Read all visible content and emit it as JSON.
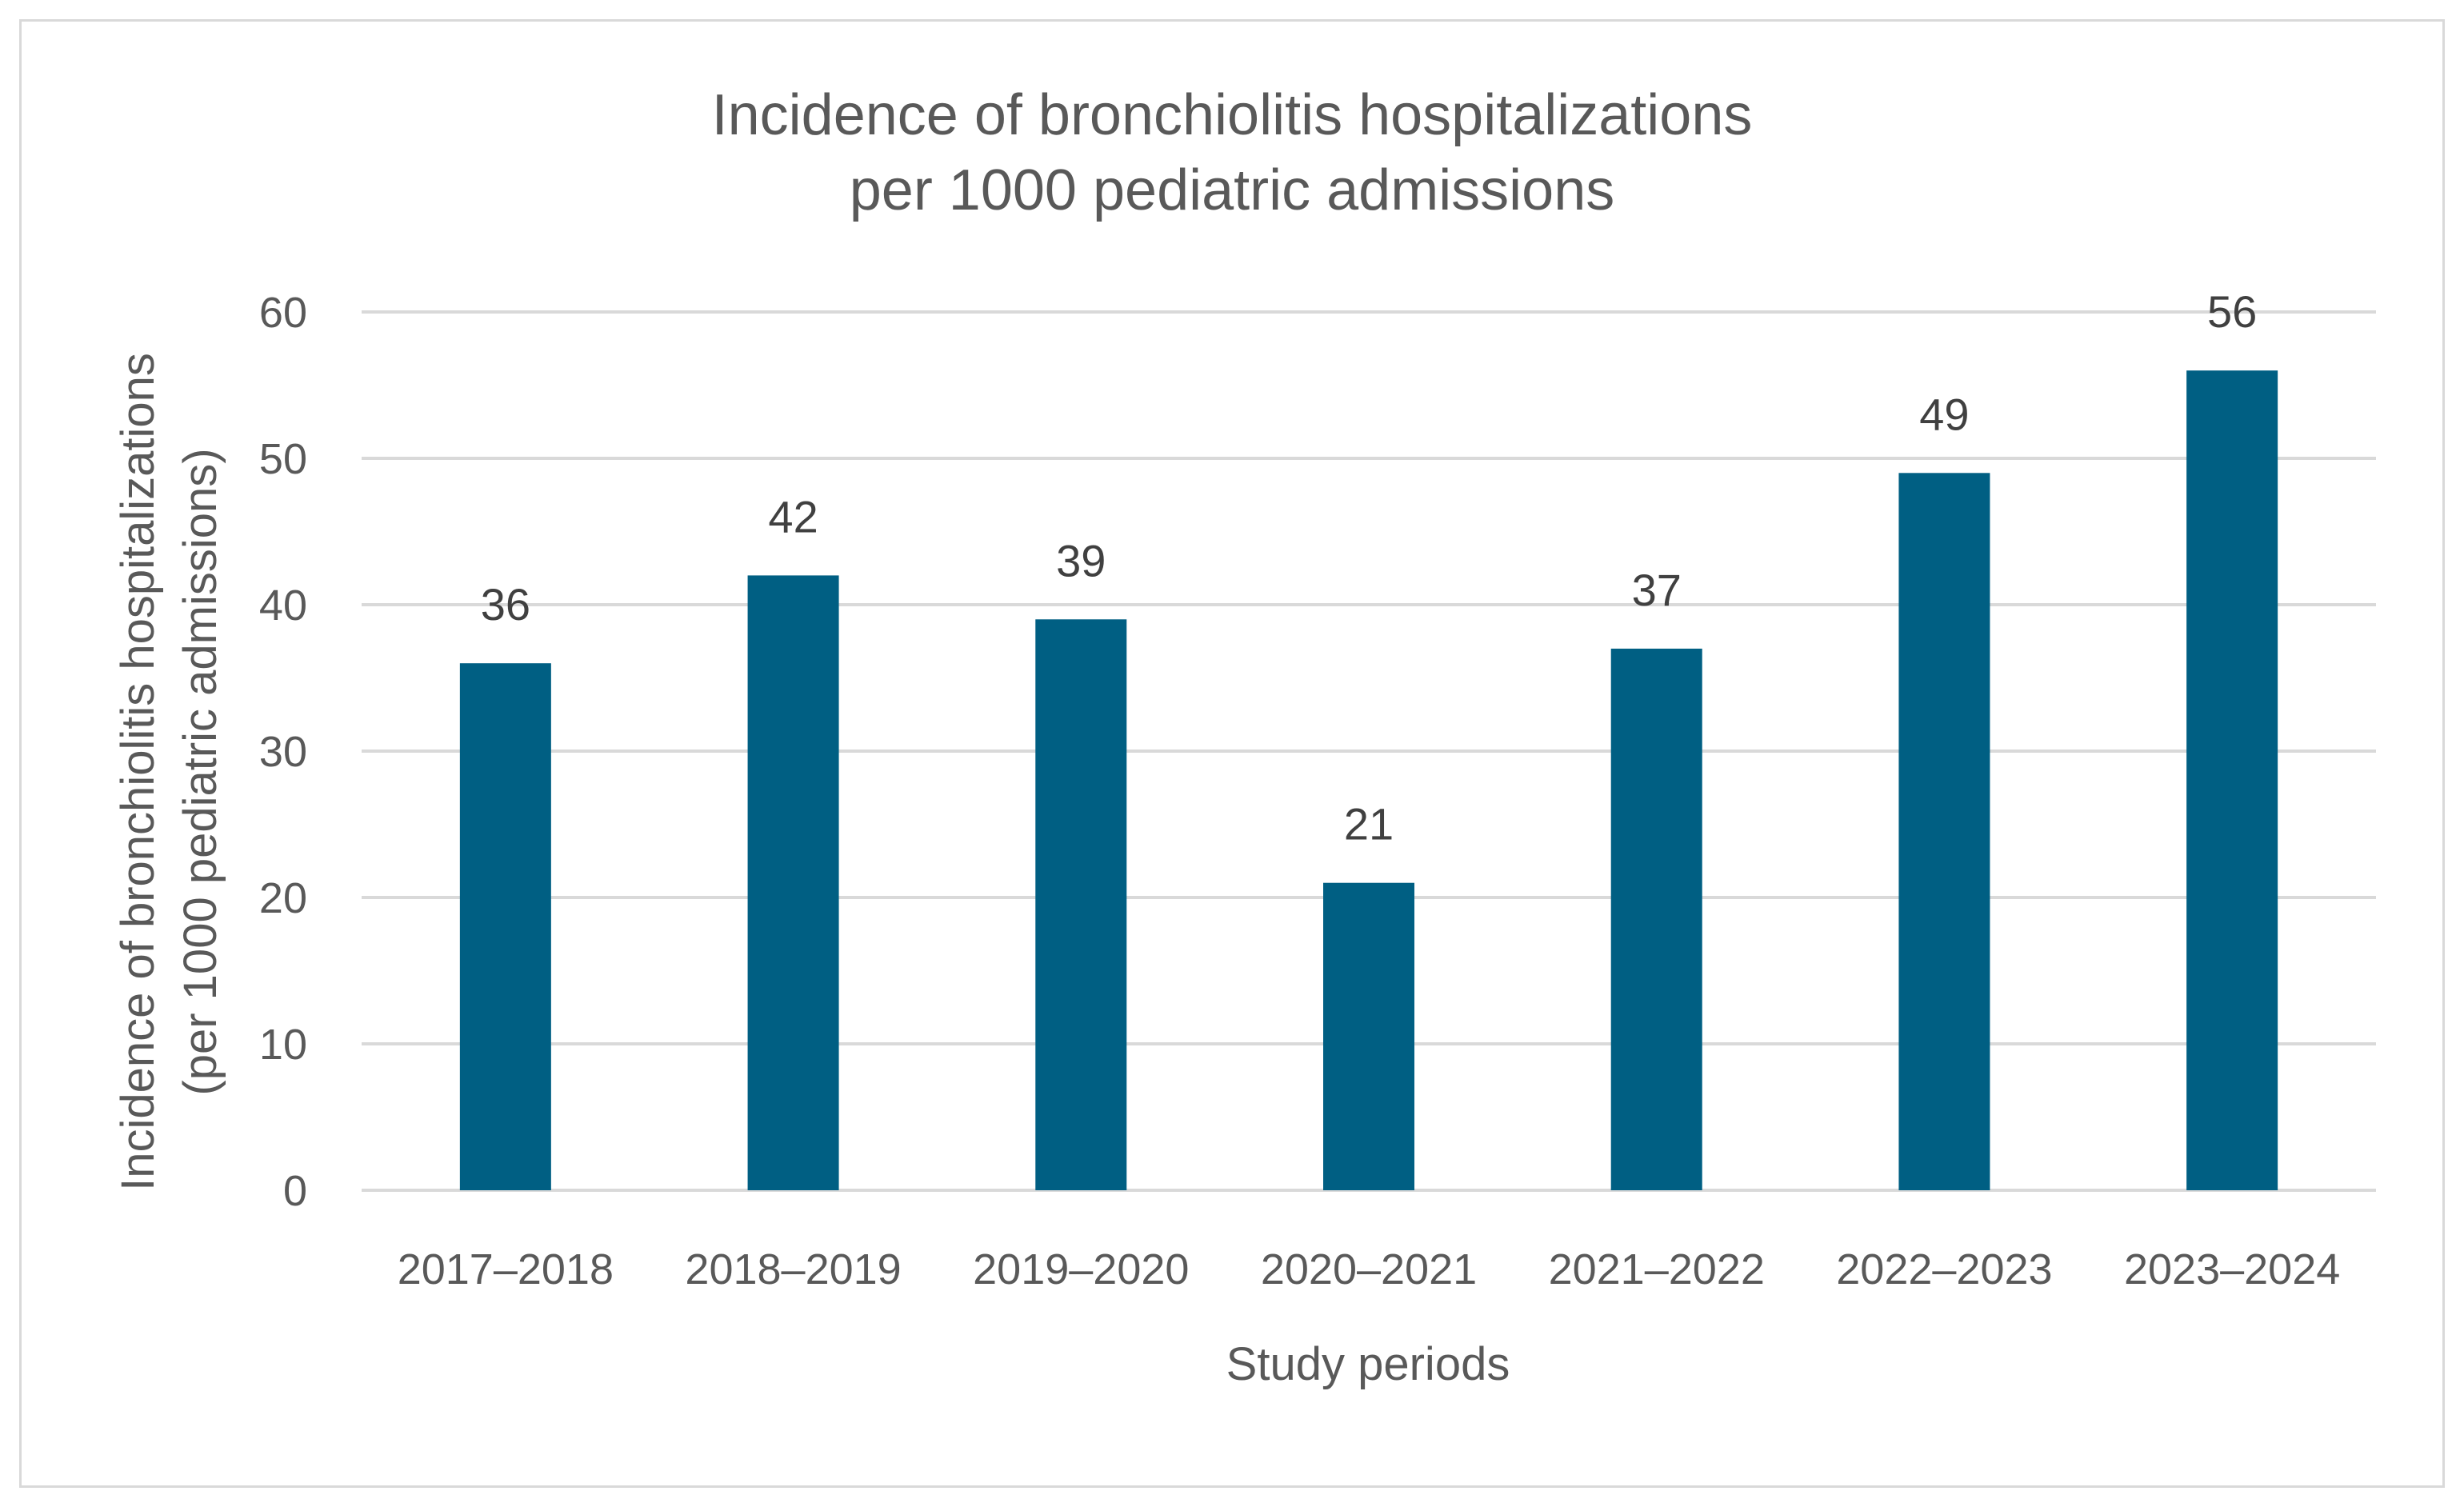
{
  "chart_data": {
    "type": "bar",
    "title_lines": [
      "Incidence of bronchiolitis hospitalizations",
      "per 1000 pediatric admissions"
    ],
    "categories": [
      "2017–2018",
      "2018–2019",
      "2019–2020",
      "2020–2021",
      "2021–2022",
      "2022–2023",
      "2023–2024"
    ],
    "values": [
      36,
      42,
      39,
      21,
      37,
      49,
      56
    ],
    "data_labels": [
      "36",
      "42",
      "39",
      "21",
      "37",
      "49",
      "56"
    ],
    "xlabel": "Study periods",
    "ylabel_lines": [
      "Incidence of bronchiolitis hospitalizations",
      "(per 1000 pediatric admissions)"
    ],
    "ylim": [
      0,
      60
    ],
    "yticks": [
      0,
      10,
      20,
      30,
      40,
      50,
      60
    ],
    "grid": true,
    "bar_color": "#005f83",
    "grid_color": "#d9d9d9",
    "text_color": "#595959"
  }
}
